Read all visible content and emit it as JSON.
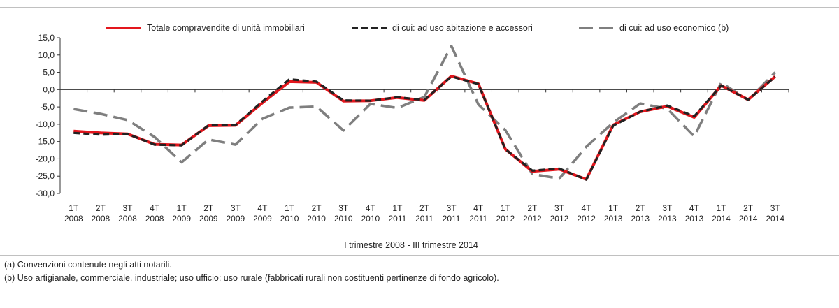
{
  "chart_data": {
    "type": "line",
    "title": "",
    "xlabel": "I trimestre 2008 - III  trimestre 2014",
    "ylabel": "",
    "ylim": [
      -30,
      15
    ],
    "yticks": [
      "15,0",
      "10,0",
      "5,0",
      "0,0",
      "-5,0",
      "-10,0",
      "-15,0",
      "-20,0",
      "-25,0",
      "-30,0"
    ],
    "legend_position": "top",
    "categories": [
      [
        "1T",
        "2008"
      ],
      [
        "2T",
        "2008"
      ],
      [
        "3T",
        "2008"
      ],
      [
        "4T",
        "2008"
      ],
      [
        "1T",
        "2009"
      ],
      [
        "2T",
        "2009"
      ],
      [
        "3T",
        "2009"
      ],
      [
        "4T",
        "2009"
      ],
      [
        "1T",
        "2010"
      ],
      [
        "2T",
        "2010"
      ],
      [
        "3T",
        "2010"
      ],
      [
        "4T",
        "2010"
      ],
      [
        "1T",
        "2011"
      ],
      [
        "2T",
        "2011"
      ],
      [
        "3T",
        "2011"
      ],
      [
        "4T",
        "2011"
      ],
      [
        "1T",
        "2012"
      ],
      [
        "2T",
        "2012"
      ],
      [
        "3T",
        "2012"
      ],
      [
        "4T",
        "2012"
      ],
      [
        "1T",
        "2013"
      ],
      [
        "2T",
        "2013"
      ],
      [
        "3T",
        "2013"
      ],
      [
        "4T",
        "2013"
      ],
      [
        "1T",
        "2014"
      ],
      [
        "2T",
        "2014"
      ],
      [
        "3T",
        "2014"
      ]
    ],
    "series": [
      {
        "name": "Totale compravendite di unità immobiliari",
        "color": "#e3161d",
        "style": "solid",
        "values": [
          -12.0,
          -12.5,
          -12.8,
          -15.8,
          -16.0,
          -10.4,
          -10.3,
          -3.8,
          2.3,
          2.1,
          -3.3,
          -3.2,
          -2.3,
          -3.1,
          3.9,
          1.7,
          -17.2,
          -23.6,
          -23.0,
          -25.9,
          -10.2,
          -6.4,
          -4.8,
          -8.0,
          1.2,
          -2.9,
          3.8
        ]
      },
      {
        "name": "di cui: ad uso abitazione e accessori",
        "color": "#222222",
        "style": "dashed",
        "values": [
          -12.5,
          -13.0,
          -12.8,
          -15.9,
          -16.1,
          -10.3,
          -10.2,
          -3.4,
          3.0,
          2.3,
          -3.1,
          -3.2,
          -2.2,
          -3.0,
          3.8,
          1.6,
          -17.2,
          -23.4,
          -22.8,
          -26.0,
          -10.4,
          -6.4,
          -4.6,
          -7.7,
          1.2,
          -2.9,
          3.7
        ]
      },
      {
        "name": "di cui: ad uso economico (b)",
        "color": "#7f7f7f",
        "style": "longdash",
        "values": [
          -5.6,
          -7.0,
          -8.8,
          -13.7,
          -21.0,
          -14.4,
          -15.9,
          -8.4,
          -5.2,
          -4.9,
          -11.8,
          -4.1,
          -5.3,
          -2.1,
          12.6,
          -4.3,
          -11.7,
          -24.4,
          -25.7,
          -16.5,
          -9.5,
          -4.0,
          -5.5,
          -13.5,
          2.0,
          -3.0,
          5.0
        ]
      }
    ]
  },
  "notes": {
    "a": "(a) Convenzioni contenute negli atti notarili.",
    "b": "(b) Uso artigianale, commerciale, industriale; uso ufficio; uso rurale (fabbricati rurali non costituenti pertinenze di fondo agricolo)."
  }
}
